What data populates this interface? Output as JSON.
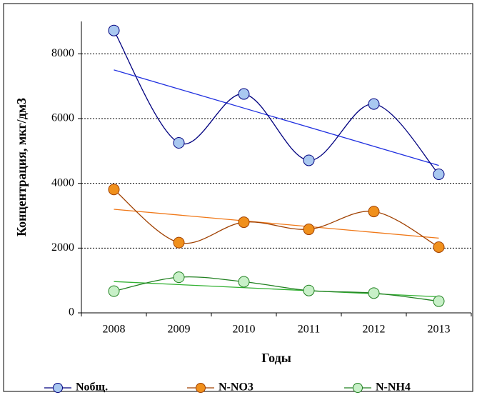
{
  "chart_data": {
    "type": "line",
    "y_axis_label": "Концентрация, мкг/дм3",
    "x_axis_label": "Годы",
    "categories": [
      "2008",
      "2009",
      "2010",
      "2011",
      "2012",
      "2013"
    ],
    "series": [
      {
        "name": "Nобщ.",
        "color": "#00007f",
        "marker_color": "#a9c8f0",
        "trend_color": "#2030e0",
        "values": [
          8720,
          5250,
          6760,
          4710,
          6450,
          4280
        ]
      },
      {
        "name": "N-NO3",
        "color": "#a04000",
        "marker_color": "#f0901c",
        "trend_color": "#f07818",
        "values": [
          3810,
          2170,
          2800,
          2580,
          3130,
          2030
        ]
      },
      {
        "name": "N-NH4",
        "color": "#208020",
        "marker_color": "#c8f0c8",
        "trend_color": "#30b030",
        "values": [
          670,
          1100,
          960,
          690,
          610,
          360
        ]
      }
    ],
    "ylim": [
      0,
      9000
    ],
    "yticks": [
      0,
      2000,
      4000,
      6000,
      8000
    ],
    "grid": true,
    "legend": "bottom"
  }
}
